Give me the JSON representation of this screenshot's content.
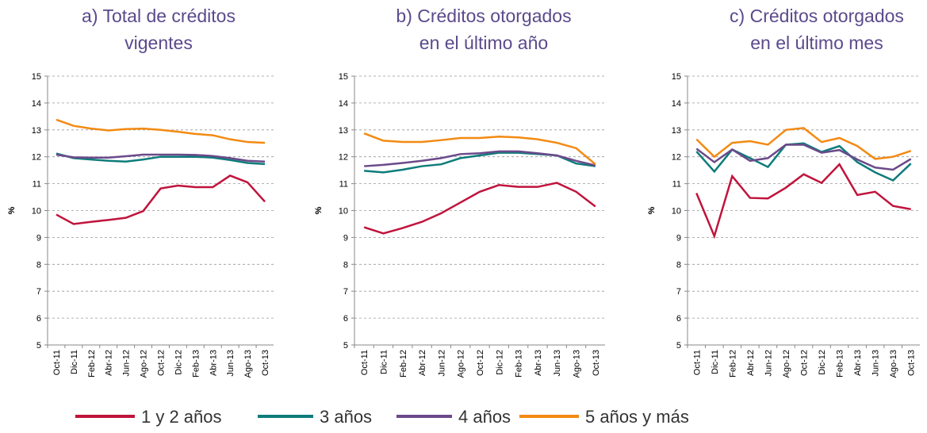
{
  "chart_data": [
    {
      "type": "line",
      "title": [
        "a)   Total de créditos",
        "vigentes"
      ],
      "ylabel": "%",
      "categories": [
        "Oct-11",
        "Dic-11",
        "Feb-12",
        "Abr-12",
        "Jun-12",
        "Ago-12",
        "Oct-12",
        "Dic-12",
        "Feb-13",
        "Abr-13",
        "Jun-13",
        "Ago-13",
        "Oct-13"
      ],
      "ylim": [
        5,
        15
      ],
      "yticks": [
        5,
        6,
        7,
        8,
        9,
        10,
        11,
        12,
        13,
        14,
        15
      ],
      "grid": true,
      "series": [
        {
          "values": [
            9.85,
            9.5,
            9.58,
            9.65,
            9.73,
            9.98,
            10.82,
            10.93,
            10.87,
            10.87,
            11.3,
            11.05,
            10.33
          ]
        },
        {
          "values": [
            12.12,
            11.95,
            11.9,
            11.85,
            11.82,
            11.9,
            12.0,
            12.0,
            12.0,
            11.97,
            11.88,
            11.77,
            11.73
          ]
        },
        {
          "values": [
            12.08,
            11.98,
            11.97,
            11.97,
            12.02,
            12.08,
            12.08,
            12.08,
            12.07,
            12.03,
            11.95,
            11.85,
            11.82
          ]
        },
        {
          "values": [
            13.38,
            13.15,
            13.05,
            12.98,
            13.03,
            13.05,
            13.0,
            12.93,
            12.85,
            12.8,
            12.65,
            12.55,
            12.52
          ]
        }
      ]
    },
    {
      "type": "line",
      "title": [
        "b)   Créditos otorgados",
        "en el último año"
      ],
      "ylabel": "%",
      "categories": [
        "Oct-11",
        "Dic-11",
        "Feb-12",
        "Abr-12",
        "Jun-12",
        "Ago-12",
        "Oct-12",
        "Dic-12",
        "Feb-13",
        "Abr-13",
        "Jun-13",
        "Ago-13",
        "Oct-13"
      ],
      "ylim": [
        5,
        15
      ],
      "yticks": [
        5,
        6,
        7,
        8,
        9,
        10,
        11,
        12,
        13,
        14,
        15
      ],
      "grid": true,
      "series": [
        {
          "values": [
            9.38,
            9.15,
            9.35,
            9.58,
            9.9,
            10.3,
            10.7,
            10.95,
            10.88,
            10.88,
            11.03,
            10.7,
            10.15
          ]
        },
        {
          "values": [
            11.48,
            11.42,
            11.52,
            11.65,
            11.72,
            11.95,
            12.05,
            12.15,
            12.15,
            12.1,
            12.05,
            11.75,
            11.65
          ]
        },
        {
          "values": [
            11.65,
            11.7,
            11.77,
            11.85,
            11.95,
            12.1,
            12.13,
            12.2,
            12.2,
            12.13,
            12.05,
            11.85,
            11.68
          ]
        },
        {
          "values": [
            12.87,
            12.6,
            12.55,
            12.55,
            12.62,
            12.7,
            12.7,
            12.75,
            12.72,
            12.65,
            12.52,
            12.32,
            11.72
          ]
        }
      ]
    },
    {
      "type": "line",
      "title": [
        "c)   Créditos otorgados",
        "en el último mes"
      ],
      "ylabel": "%",
      "categories": [
        "Oct-11",
        "Dic-11",
        "Feb-12",
        "Abr-12",
        "Jun-12",
        "Ago-12",
        "Oct-12",
        "Dic-12",
        "Feb-13",
        "Abr-13",
        "Jun-13",
        "Ago-13",
        "Oct-13"
      ],
      "ylim": [
        5,
        15
      ],
      "yticks": [
        5,
        6,
        7,
        8,
        9,
        10,
        11,
        12,
        13,
        14,
        15
      ],
      "grid": true,
      "series": [
        {
          "values": [
            10.65,
            9.05,
            11.28,
            10.47,
            10.45,
            10.85,
            11.35,
            11.03,
            11.72,
            10.58,
            10.7,
            10.17,
            10.05
          ]
        },
        {
          "values": [
            12.2,
            11.45,
            12.27,
            11.95,
            11.62,
            12.45,
            12.5,
            12.18,
            12.4,
            11.8,
            11.42,
            11.12,
            11.75
          ]
        },
        {
          "values": [
            12.3,
            11.8,
            12.27,
            11.85,
            11.95,
            12.45,
            12.45,
            12.15,
            12.25,
            11.9,
            11.6,
            11.52,
            11.92
          ]
        },
        {
          "values": [
            12.65,
            12.0,
            12.52,
            12.58,
            12.45,
            13.0,
            13.07,
            12.55,
            12.7,
            12.4,
            11.92,
            12.0,
            12.22
          ]
        }
      ]
    }
  ],
  "legend": [
    {
      "name": "1 y 2 años",
      "color": "#c0143c"
    },
    {
      "name": "3 años",
      "color": "#0e7c7b"
    },
    {
      "name": "4 años",
      "color": "#6b4a8a"
    },
    {
      "name": "5 años y más",
      "color": "#f38a12"
    }
  ]
}
